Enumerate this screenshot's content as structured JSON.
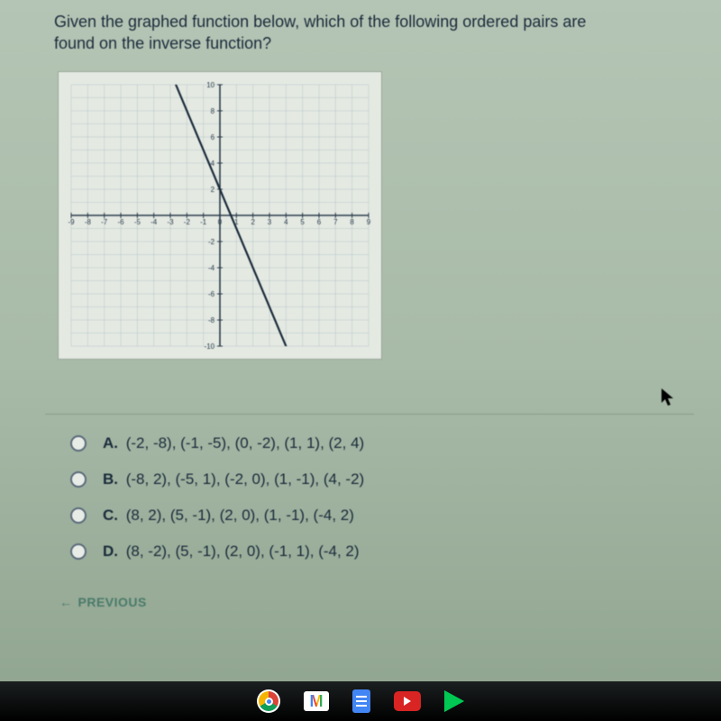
{
  "question": {
    "line1": "Given the graphed function below, which of the following ordered pairs are",
    "line2": "found on the inverse function?"
  },
  "graph": {
    "xRange": [
      -9,
      9
    ],
    "yRange": [
      -10,
      10
    ],
    "xTicks": [
      -9,
      -8,
      -7,
      -6,
      -5,
      -4,
      -3,
      -2,
      -1,
      0,
      1,
      2,
      3,
      4,
      5,
      6,
      7,
      8,
      9
    ],
    "yTicks": [
      -10,
      -8,
      -6,
      -4,
      -2,
      0,
      2,
      4,
      6,
      8,
      10
    ],
    "tickLabels": {
      "x": [
        "-9",
        "-8",
        "-7",
        "-6",
        "-5",
        "-4",
        "-3",
        "-2",
        "-1",
        "0",
        "1",
        "2",
        "3",
        "4",
        "5",
        "6",
        "7",
        "8",
        "9"
      ],
      "y": [
        "10",
        "8",
        "6",
        "4",
        "2",
        "-2",
        "-4",
        "-6",
        "-8",
        "-10"
      ]
    },
    "gridColor": "#9bb0bb",
    "axisColor": "#2a3a4a",
    "lineColor": "#1a2a3a",
    "backgroundColor": "#e4e9e2",
    "linePoints": [
      [
        -3,
        11
      ],
      [
        5,
        -13
      ]
    ],
    "tickFontSize": 8
  },
  "choices": [
    {
      "letter": "A.",
      "text": "(-2, -8), (-1, -5), (0, -2), (1, 1), (2, 4)"
    },
    {
      "letter": "B.",
      "text": "(-8, 2), (-5, 1), (-2, 0), (1, -1), (4, -2)"
    },
    {
      "letter": "C.",
      "text": "(8, 2), (5, -1), (2, 0), (1, -1), (-4, 2)"
    },
    {
      "letter": "D.",
      "text": "(8, -2), (5, -1), (2, 0), (-1, 1), (-4, 2)"
    }
  ],
  "previousLabel": "PREVIOUS",
  "taskbar": {
    "gmailLetter": "M"
  }
}
